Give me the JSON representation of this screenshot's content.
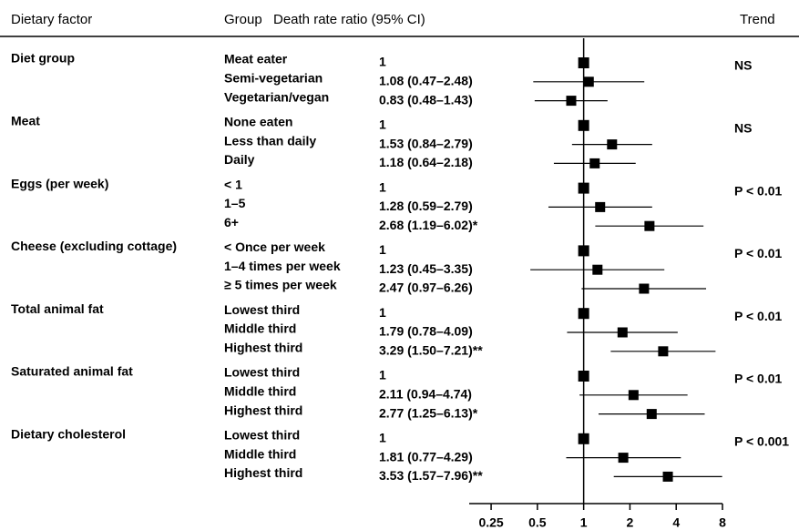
{
  "chart_data": {
    "type": "forest",
    "headers": [
      "Dietary factor",
      "Group",
      "Death rate ratio (95% CI)",
      "Trend"
    ],
    "xscale": "log",
    "xlim": [
      0.18,
      8
    ],
    "xticks": [
      0.25,
      0.5,
      1,
      2,
      4,
      8
    ],
    "refline": 1,
    "factors": [
      {
        "name": "Diet group",
        "trend": "NS",
        "rows": [
          {
            "group": "Meat eater",
            "value": 1,
            "label": "1"
          },
          {
            "group": "Semi-vegetarian",
            "value": 1.08,
            "lo": 0.47,
            "hi": 2.48,
            "label": "1.08 (0.47–2.48)"
          },
          {
            "group": "Vegetarian/vegan",
            "value": 0.83,
            "lo": 0.48,
            "hi": 1.43,
            "label": "0.83 (0.48–1.43)"
          }
        ]
      },
      {
        "name": "Meat",
        "trend": "NS",
        "rows": [
          {
            "group": "None eaten",
            "value": 1,
            "label": "1"
          },
          {
            "group": "Less than daily",
            "value": 1.53,
            "lo": 0.84,
            "hi": 2.79,
            "label": "1.53 (0.84–2.79)"
          },
          {
            "group": "Daily",
            "value": 1.18,
            "lo": 0.64,
            "hi": 2.18,
            "label": "1.18 (0.64–2.18)"
          }
        ]
      },
      {
        "name": "Eggs (per week)",
        "trend": "P < 0.01",
        "rows": [
          {
            "group": "< 1",
            "value": 1,
            "label": "1"
          },
          {
            "group": "1–5",
            "value": 1.28,
            "lo": 0.59,
            "hi": 2.79,
            "label": "1.28 (0.59–2.79)"
          },
          {
            "group": "6+",
            "value": 2.68,
            "lo": 1.19,
            "hi": 6.02,
            "label": "2.68 (1.19–6.02)*"
          }
        ]
      },
      {
        "name": "Cheese (excluding cottage)",
        "trend": "P < 0.01",
        "rows": [
          {
            "group": "< Once per week",
            "value": 1,
            "label": "1"
          },
          {
            "group": "1–4 times per week",
            "value": 1.23,
            "lo": 0.45,
            "hi": 3.35,
            "label": "1.23 (0.45–3.35)"
          },
          {
            "group": "≥ 5 times per week",
            "value": 2.47,
            "lo": 0.97,
            "hi": 6.26,
            "label": "2.47 (0.97–6.26)"
          }
        ]
      },
      {
        "name": "Total animal fat",
        "trend": "P < 0.01",
        "rows": [
          {
            "group": "Lowest third",
            "value": 1,
            "label": "1"
          },
          {
            "group": "Middle third",
            "value": 1.79,
            "lo": 0.78,
            "hi": 4.09,
            "label": "1.79 (0.78–4.09)"
          },
          {
            "group": "Highest third",
            "value": 3.29,
            "lo": 1.5,
            "hi": 7.21,
            "label": "3.29 (1.50–7.21)**"
          }
        ]
      },
      {
        "name": "Saturated animal fat",
        "trend": "P < 0.01",
        "rows": [
          {
            "group": "Lowest third",
            "value": 1,
            "label": "1"
          },
          {
            "group": "Middle third",
            "value": 2.11,
            "lo": 0.94,
            "hi": 4.74,
            "label": "2.11 (0.94–4.74)"
          },
          {
            "group": "Highest third",
            "value": 2.77,
            "lo": 1.25,
            "hi": 6.13,
            "label": "2.77 (1.25–6.13)*"
          }
        ]
      },
      {
        "name": "Dietary cholesterol",
        "trend": "P < 0.001",
        "rows": [
          {
            "group": "Lowest third",
            "value": 1,
            "label": "1"
          },
          {
            "group": "Middle third",
            "value": 1.81,
            "lo": 0.77,
            "hi": 4.29,
            "label": "1.81 (0.77–4.29)"
          },
          {
            "group": "Highest third",
            "value": 3.53,
            "lo": 1.57,
            "hi": 7.96,
            "label": "3.53 (1.57–7.96)**"
          }
        ]
      }
    ]
  }
}
